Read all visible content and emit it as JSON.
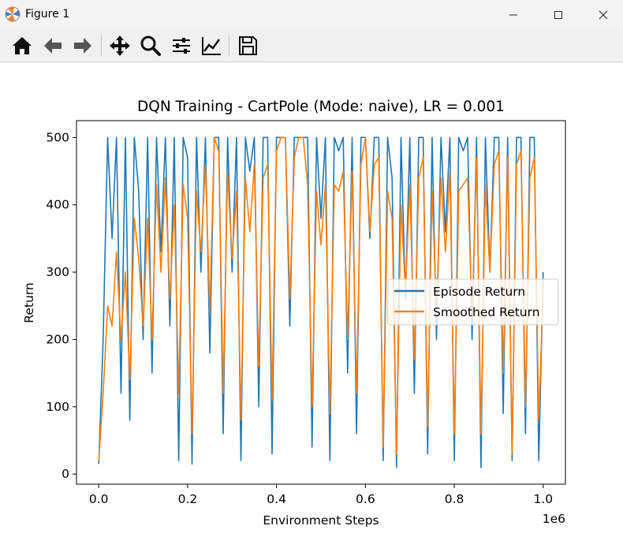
{
  "window": {
    "title": "Figure 1",
    "colors": {
      "titlebar": "#f3f3f3",
      "toolbar": "#f0f0f0"
    }
  },
  "toolbar": {
    "icons": [
      "home-icon",
      "back-arrow-icon",
      "forward-arrow-icon",
      "pan-icon",
      "zoom-icon",
      "configure-subplots-icon",
      "edit-axis-icon",
      "save-icon"
    ]
  },
  "chart_data": {
    "type": "line",
    "title": "DQN Training - CartPole (Mode: naive), LR = 0.001",
    "xlabel": "Environment Steps",
    "ylabel": "Return",
    "x_offset_label": "1e6",
    "xlim": [
      -0.05,
      1.05
    ],
    "ylim": [
      -15,
      525
    ],
    "xticks": [
      0.0,
      0.2,
      0.4,
      0.6,
      0.8,
      1.0
    ],
    "xtick_labels": [
      "0.0",
      "0.2",
      "0.4",
      "0.6",
      "0.8",
      "1.0"
    ],
    "yticks": [
      0,
      100,
      200,
      300,
      400,
      500
    ],
    "ytick_labels": [
      "0",
      "100",
      "200",
      "300",
      "400",
      "500"
    ],
    "grid": false,
    "legend_position": "center-right",
    "series": [
      {
        "name": "Episode Return",
        "color": "#1f77b4",
        "x": [
          0.0,
          0.01,
          0.02,
          0.03,
          0.04,
          0.05,
          0.06,
          0.07,
          0.08,
          0.09,
          0.1,
          0.11,
          0.12,
          0.13,
          0.14,
          0.15,
          0.16,
          0.17,
          0.18,
          0.19,
          0.2,
          0.21,
          0.22,
          0.23,
          0.24,
          0.25,
          0.26,
          0.27,
          0.28,
          0.29,
          0.3,
          0.31,
          0.32,
          0.33,
          0.34,
          0.35,
          0.36,
          0.37,
          0.38,
          0.39,
          0.4,
          0.41,
          0.42,
          0.43,
          0.44,
          0.45,
          0.46,
          0.47,
          0.48,
          0.49,
          0.5,
          0.51,
          0.52,
          0.53,
          0.54,
          0.55,
          0.56,
          0.57,
          0.58,
          0.59,
          0.6,
          0.61,
          0.62,
          0.63,
          0.64,
          0.65,
          0.66,
          0.67,
          0.68,
          0.69,
          0.7,
          0.71,
          0.72,
          0.73,
          0.74,
          0.75,
          0.76,
          0.77,
          0.78,
          0.79,
          0.8,
          0.81,
          0.82,
          0.83,
          0.84,
          0.85,
          0.86,
          0.87,
          0.88,
          0.89,
          0.9,
          0.91,
          0.92,
          0.93,
          0.94,
          0.95,
          0.96,
          0.97,
          0.98,
          0.99,
          1.0
        ],
        "values": [
          15,
          200,
          500,
          350,
          500,
          120,
          500,
          80,
          500,
          420,
          200,
          500,
          150,
          500,
          330,
          500,
          220,
          500,
          20,
          500,
          470,
          15,
          500,
          300,
          500,
          180,
          500,
          500,
          60,
          500,
          300,
          500,
          20,
          500,
          450,
          500,
          100,
          500,
          500,
          30,
          500,
          500,
          500,
          220,
          500,
          500,
          500,
          500,
          40,
          500,
          380,
          500,
          20,
          500,
          480,
          500,
          150,
          500,
          60,
          500,
          500,
          350,
          500,
          500,
          20,
          500,
          440,
          10,
          500,
          260,
          500,
          120,
          500,
          500,
          30,
          500,
          200,
          500,
          360,
          500,
          20,
          500,
          480,
          500,
          200,
          500,
          10,
          500,
          300,
          500,
          500,
          90,
          500,
          20,
          500,
          500,
          60,
          500,
          500,
          20,
          300
        ]
      },
      {
        "name": "Smoothed Return",
        "color": "#ff7f0e",
        "x": [
          0.0,
          0.01,
          0.02,
          0.03,
          0.04,
          0.05,
          0.06,
          0.07,
          0.08,
          0.09,
          0.1,
          0.11,
          0.12,
          0.13,
          0.14,
          0.15,
          0.16,
          0.17,
          0.18,
          0.19,
          0.2,
          0.21,
          0.22,
          0.23,
          0.24,
          0.25,
          0.26,
          0.27,
          0.28,
          0.29,
          0.3,
          0.31,
          0.32,
          0.33,
          0.34,
          0.35,
          0.36,
          0.37,
          0.38,
          0.39,
          0.4,
          0.41,
          0.42,
          0.43,
          0.44,
          0.45,
          0.46,
          0.47,
          0.48,
          0.49,
          0.5,
          0.51,
          0.52,
          0.53,
          0.54,
          0.55,
          0.56,
          0.57,
          0.58,
          0.59,
          0.6,
          0.61,
          0.62,
          0.63,
          0.64,
          0.65,
          0.66,
          0.67,
          0.68,
          0.69,
          0.7,
          0.71,
          0.72,
          0.73,
          0.74,
          0.75,
          0.76,
          0.77,
          0.78,
          0.79,
          0.8,
          0.81,
          0.82,
          0.83,
          0.84,
          0.85,
          0.86,
          0.87,
          0.88,
          0.89,
          0.9,
          0.91,
          0.92,
          0.93,
          0.94,
          0.95,
          0.96,
          0.97,
          0.98,
          0.99,
          1.0
        ],
        "values": [
          20,
          120,
          250,
          220,
          330,
          200,
          300,
          140,
          380,
          320,
          220,
          380,
          200,
          430,
          300,
          440,
          260,
          400,
          120,
          430,
          380,
          60,
          420,
          330,
          460,
          240,
          500,
          480,
          120,
          450,
          320,
          420,
          80,
          440,
          360,
          460,
          160,
          440,
          460,
          110,
          480,
          500,
          500,
          260,
          470,
          500,
          500,
          430,
          100,
          420,
          340,
          430,
          90,
          430,
          420,
          450,
          200,
          450,
          120,
          460,
          500,
          360,
          460,
          470,
          40,
          420,
          380,
          30,
          400,
          270,
          430,
          170,
          440,
          470,
          70,
          420,
          240,
          440,
          330,
          450,
          60,
          420,
          430,
          440,
          230,
          470,
          60,
          430,
          300,
          460,
          480,
          150,
          470,
          30,
          460,
          480,
          100,
          440,
          470,
          80,
          280
        ]
      }
    ]
  }
}
